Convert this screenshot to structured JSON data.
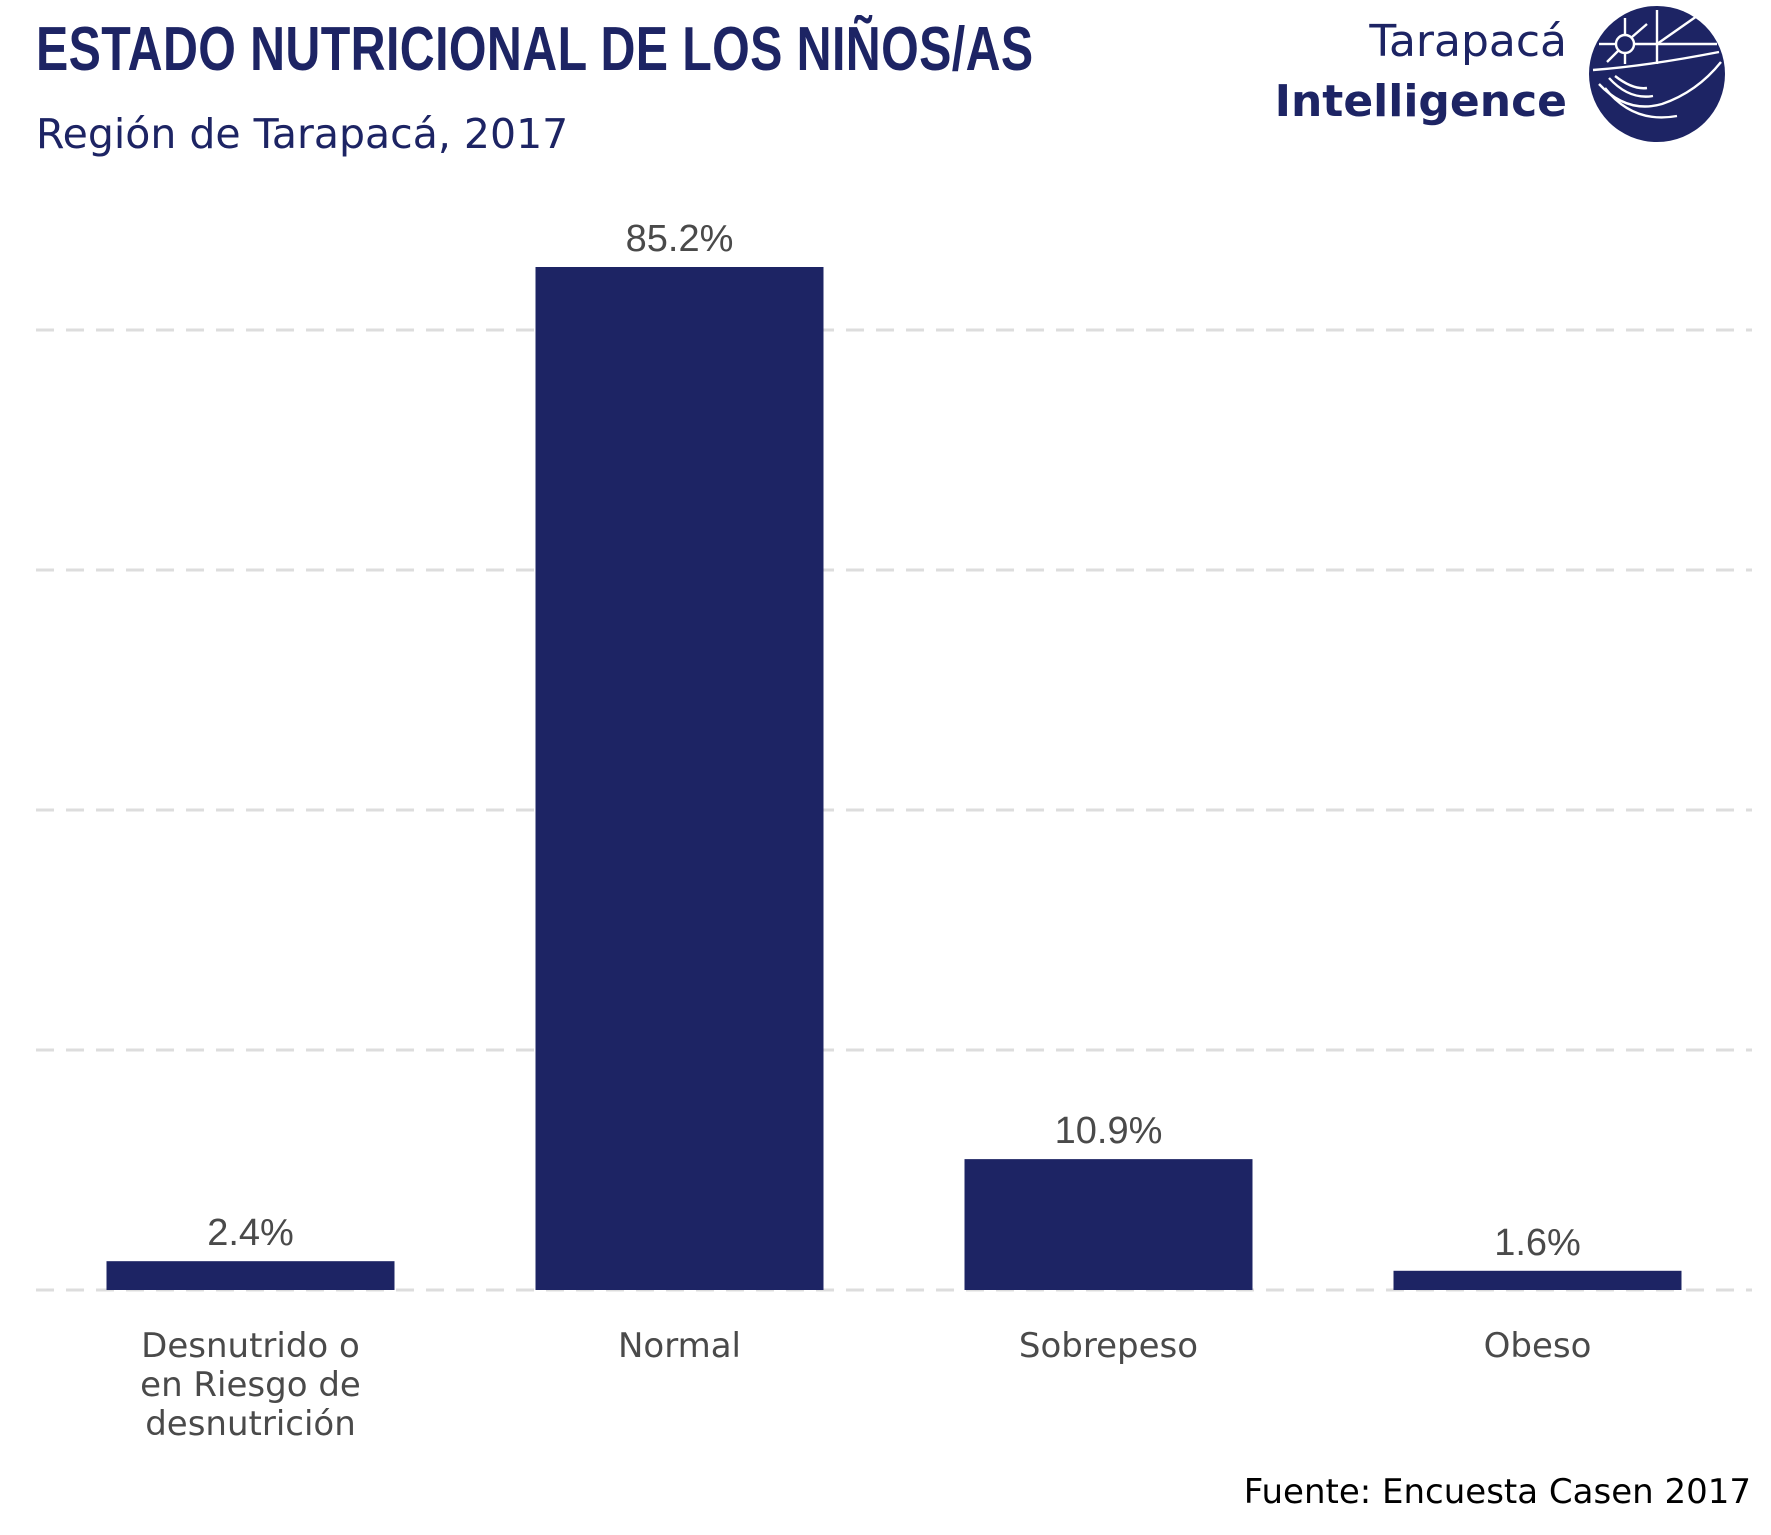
{
  "header": {
    "title": "ESTADO NUTRICIONAL DE LOS NIÑOS/AS",
    "subtitle": "Región de Tarapacá, 2017"
  },
  "logo": {
    "line1": "Tarapacá",
    "line2": "Intelligence",
    "icon": "globe-compass-icon"
  },
  "footer": {
    "source": "Fuente: Encuesta Casen 2017"
  },
  "colors": {
    "bar": "#1d2464",
    "brand": "#1d2464",
    "grid": "#dddddd",
    "label": "#4a4a4a"
  },
  "chart_data": {
    "type": "bar",
    "categories": [
      [
        "Desnutrido o",
        "en Riesgo de",
        "desnutrición"
      ],
      [
        "Normal"
      ],
      [
        "Sobrepeso"
      ],
      [
        "Obeso"
      ]
    ],
    "values": [
      2.4,
      85.2,
      10.9,
      1.6
    ],
    "data_labels": [
      "2.4%",
      "85.2%",
      "10.9%",
      "1.6%"
    ],
    "ylim": [
      0,
      85.2
    ],
    "grid": true,
    "grid_style": "dashed horizontal",
    "y_axis_labels": false,
    "legend": "none"
  }
}
